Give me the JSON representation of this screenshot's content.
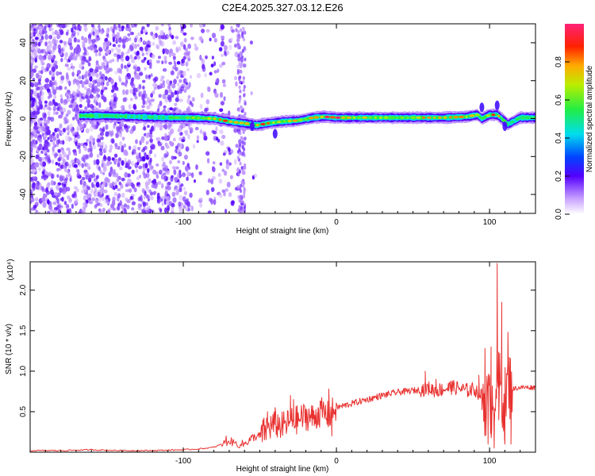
{
  "title": "C2E4.2025.327.03.12.E26",
  "chart_data": [
    {
      "type": "heatmap",
      "xlabel": "Height of straight line (km)",
      "ylabel": "Frequency (Hz)",
      "xlim": [
        -200,
        130
      ],
      "ylim": [
        -50,
        50
      ],
      "x_ticks": [
        -100,
        0,
        100
      ],
      "y_ticks": [
        -40,
        -20,
        0,
        20,
        40
      ],
      "colorbar": {
        "label": "Normalized spectral amplitude",
        "range": [
          0,
          1
        ],
        "ticks": [
          0.0,
          0.2,
          0.4,
          0.6,
          0.8
        ]
      },
      "ridge": {
        "x": [
          -165,
          -150,
          -130,
          -110,
          -95,
          -80,
          -70,
          -60,
          -52,
          -45,
          -35,
          -25,
          -15,
          -8,
          0,
          10,
          30,
          50,
          70,
          85,
          92,
          95,
          100,
          105,
          108,
          112,
          120,
          130
        ],
        "center_hz": [
          1.5,
          1.5,
          1,
          0.5,
          0.5,
          0,
          -1.5,
          -2.5,
          -3.5,
          -2.5,
          -1.5,
          -1,
          0.5,
          1,
          0.5,
          0.5,
          0.5,
          0.5,
          0.5,
          1,
          2,
          0,
          2,
          2,
          0,
          -3,
          0.5,
          0.5
        ],
        "peak": [
          0.6,
          0.55,
          0.5,
          0.55,
          0.65,
          0.8,
          0.9,
          0.9,
          0.95,
          0.85,
          0.8,
          0.75,
          0.85,
          0.95,
          1.0,
          0.75,
          0.7,
          0.75,
          0.85,
          0.8,
          0.7,
          0.6,
          0.9,
          0.85,
          0.6,
          0.5,
          0.5,
          0.5
        ]
      },
      "noise_band": {
        "x_from": -200,
        "x_to": -60,
        "level": "dense"
      }
    },
    {
      "type": "line",
      "xlabel": "Height of straight line (km)",
      "ylabel": "SNR (10 * v/v)",
      "y_multiplier": "(x10⁴)",
      "xlim": [
        -200,
        130
      ],
      "ylim": [
        0,
        2.35
      ],
      "x_ticks": [
        -100,
        0,
        100
      ],
      "y_ticks": [
        0.5,
        1.0,
        1.5,
        2.0
      ],
      "series": [
        {
          "color": "#e8312f",
          "x": [
            -200,
            -180,
            -160,
            -140,
            -120,
            -100,
            -90,
            -80,
            -75,
            -70,
            -65,
            -60,
            -55,
            -50,
            -45,
            -40,
            -35,
            -30,
            -25,
            -20,
            -15,
            -10,
            -5,
            0,
            10,
            20,
            30,
            40,
            50,
            55,
            60,
            65,
            70,
            75,
            80,
            85,
            90,
            95,
            98,
            100,
            102,
            105,
            107,
            110,
            112,
            115,
            120,
            125,
            130
          ],
          "y": [
            0.02,
            0.02,
            0.03,
            0.02,
            0.02,
            0.03,
            0.04,
            0.06,
            0.1,
            0.14,
            0.1,
            0.1,
            0.18,
            0.2,
            0.3,
            0.35,
            0.32,
            0.38,
            0.4,
            0.45,
            0.42,
            0.5,
            0.45,
            0.55,
            0.6,
            0.65,
            0.7,
            0.74,
            0.76,
            0.77,
            0.79,
            0.76,
            0.78,
            0.8,
            0.79,
            0.76,
            0.78,
            0.7,
            0.6,
            0.55,
            0.65,
            0.9,
            0.8,
            0.6,
            0.85,
            0.78,
            0.8,
            0.8,
            0.8
          ],
          "spikes": [
            {
              "x": -72,
              "y": 0.2
            },
            {
              "x": -45,
              "y": 0.5
            },
            {
              "x": -40,
              "y": 0.55
            },
            {
              "x": -30,
              "y": 0.7
            },
            {
              "x": -28,
              "y": 0.65
            },
            {
              "x": -12,
              "y": 0.55
            },
            {
              "x": -5,
              "y": 0.78
            },
            {
              "x": -3,
              "y": 0.2
            },
            {
              "x": 58,
              "y": 1.0
            },
            {
              "x": 65,
              "y": 0.9
            },
            {
              "x": 75,
              "y": 0.88
            },
            {
              "x": 85,
              "y": 0.85
            },
            {
              "x": 93,
              "y": 0.95
            },
            {
              "x": 97,
              "y": 1.28
            },
            {
              "x": 99,
              "y": 0.1
            },
            {
              "x": 101,
              "y": 1.3
            },
            {
              "x": 103,
              "y": 0.05
            },
            {
              "x": 105,
              "y": 2.33
            },
            {
              "x": 106,
              "y": 0.4
            },
            {
              "x": 108,
              "y": 1.85
            },
            {
              "x": 110,
              "y": 0.1
            },
            {
              "x": 112,
              "y": 1.48
            },
            {
              "x": 114,
              "y": 0.1
            }
          ]
        }
      ]
    }
  ]
}
